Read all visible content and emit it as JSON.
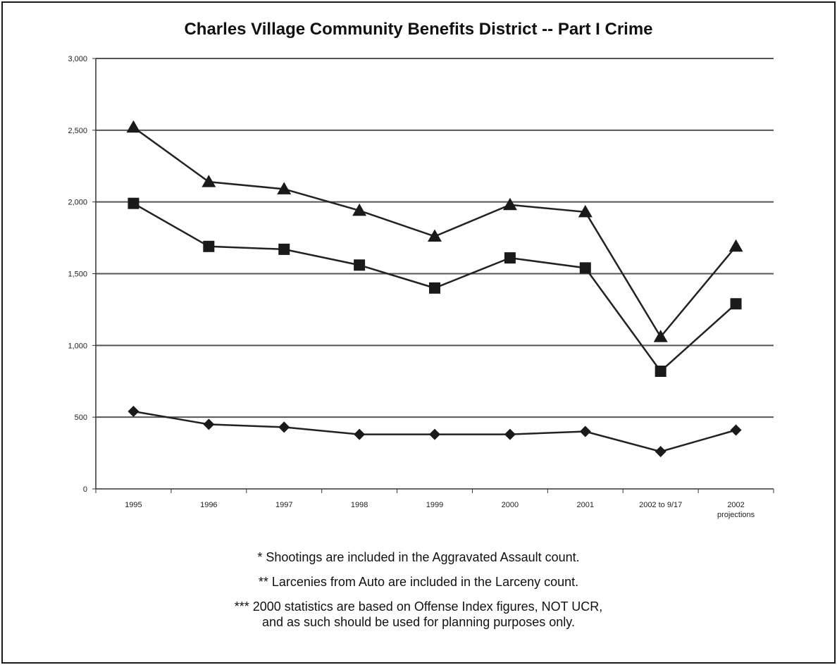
{
  "chart_data": {
    "type": "line",
    "title": "Charles Village Community Benefits District -- Part I Crime",
    "categories": [
      "1995",
      "1996",
      "1997",
      "1998",
      "1999",
      "2000",
      "2001",
      "2002 to 9/17",
      "2002 projections"
    ],
    "category_labels": [
      [
        "1995"
      ],
      [
        "1996"
      ],
      [
        "1997"
      ],
      [
        "1998"
      ],
      [
        "1999"
      ],
      [
        "2000"
      ],
      [
        "2001"
      ],
      [
        "2002 to 9/17"
      ],
      [
        "2002",
        "projections"
      ]
    ],
    "y_ticks": [
      "0",
      "500",
      "1,000",
      "1,500",
      "2,000",
      "2,500",
      "3,000"
    ],
    "ylim": [
      0,
      3000
    ],
    "grid": true,
    "series": [
      {
        "marker": "triangle",
        "values": [
          2520,
          2140,
          2090,
          1940,
          1760,
          1980,
          1930,
          1060,
          1690
        ]
      },
      {
        "marker": "square",
        "values": [
          1990,
          1690,
          1670,
          1560,
          1400,
          1610,
          1540,
          820,
          1290
        ]
      },
      {
        "marker": "diamond",
        "values": [
          540,
          450,
          430,
          380,
          380,
          380,
          400,
          260,
          410
        ]
      }
    ]
  },
  "notes": [
    "* Shootings are included in the Aggravated Assault count.",
    "** Larcenies from Auto are included in the Larceny count.",
    "*** 2000 statistics are based on Offense Index figures, NOT UCR,",
    "and as such should be used for planning purposes only."
  ]
}
